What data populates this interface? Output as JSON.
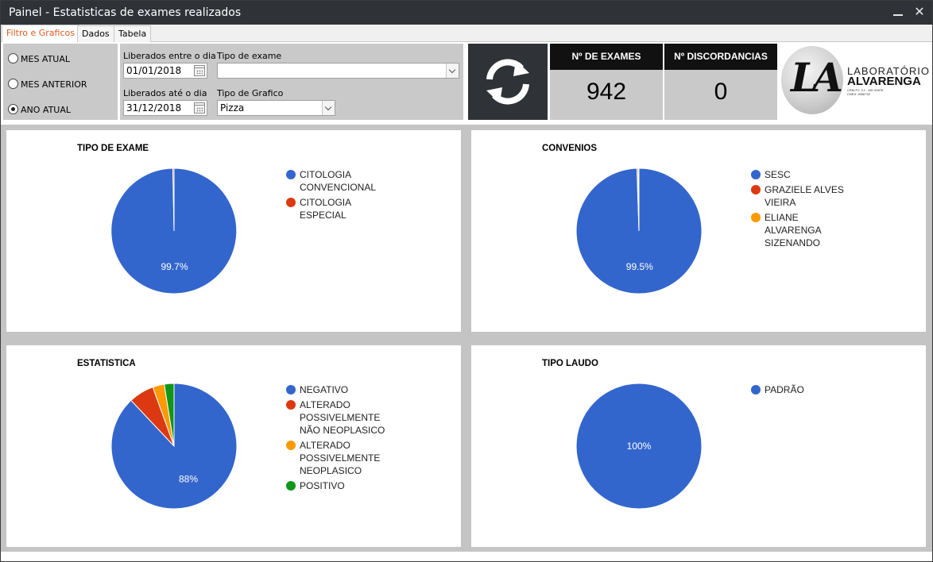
{
  "window": {
    "title": "Painel - Estatisticas de exames realizados"
  },
  "tabs": [
    {
      "label": "Filtro e Graficos",
      "active": true
    },
    {
      "label": "Dados",
      "active": false
    },
    {
      "label": "Tabela",
      "active": false
    }
  ],
  "period": {
    "options": [
      {
        "label": "MES ATUAL",
        "checked": false
      },
      {
        "label": "MES ANTERIOR",
        "checked": false
      },
      {
        "label": "ANO ATUAL",
        "checked": true
      }
    ]
  },
  "filters": {
    "start_label": "Liberados entre o dia",
    "start_value": "01/01/2018",
    "end_label": "Liberados até o dia",
    "end_value": "31/12/2018",
    "exam_type_label": "Tipo de exame",
    "exam_type_value": "",
    "chart_type_label": "Tipo de Grafico",
    "chart_type_value": "Pizza"
  },
  "stats": {
    "exames_label": "Nº DE EXAMES",
    "exames_value": "942",
    "disc_label": "Nº DISCORDANCIAS",
    "disc_value": "0"
  },
  "logo": {
    "mark": "LA",
    "line1": "LABORATÓRIO",
    "line2": "ALVARENGA",
    "small1": "CRM-PJ: 3.1 - MG 00876",
    "small2": "CNES: 2656732"
  },
  "colors": {
    "blue": "#3366cc",
    "red": "#dc3912",
    "orange": "#ff9900",
    "green": "#109618"
  },
  "chart_data": [
    {
      "type": "pie",
      "title": "TIPO DE EXAME",
      "labels": [
        "CITOLOGIA CONVENCIONAL",
        "CITOLOGIA ESPECIAL"
      ],
      "values": [
        99.7,
        0.3
      ],
      "colors": [
        "#3366cc",
        "#dc3912"
      ],
      "slice_labels": [
        "99.7%",
        ""
      ]
    },
    {
      "type": "pie",
      "title": "CONVENIOS",
      "labels": [
        "SESC",
        "GRAZIELE ALVES VIEIRA",
        "ELIANE ALVARENGA SIZENANDO"
      ],
      "values": [
        99.5,
        0.3,
        0.2
      ],
      "colors": [
        "#3366cc",
        "#dc3912",
        "#ff9900"
      ],
      "slice_labels": [
        "99.5%",
        "",
        ""
      ]
    },
    {
      "type": "pie",
      "title": "ESTATISTICA",
      "labels": [
        "NEGATIVO",
        "ALTERADO POSSIVELMENTE NÃO NEOPLASICO",
        "ALTERADO POSSIVELMENTE NEOPLASICO",
        "POSITIVO"
      ],
      "values": [
        88,
        6.5,
        3,
        2.5
      ],
      "colors": [
        "#3366cc",
        "#dc3912",
        "#ff9900",
        "#109618"
      ],
      "slice_labels": [
        "88%",
        "",
        "",
        ""
      ]
    },
    {
      "type": "pie",
      "title": "TIPO LAUDO",
      "labels": [
        "PADRÃO"
      ],
      "values": [
        100
      ],
      "colors": [
        "#3366cc"
      ],
      "slice_labels": [
        "100%"
      ]
    }
  ]
}
